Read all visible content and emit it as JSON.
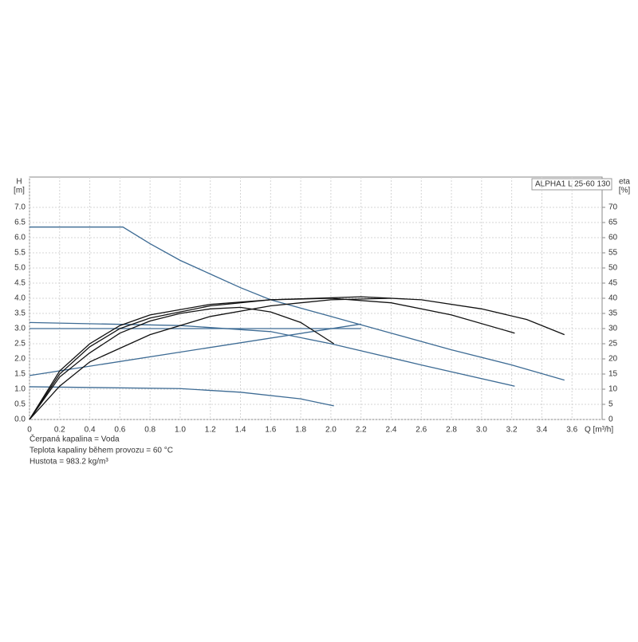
{
  "chart_data": {
    "type": "line",
    "legend_title": "ALPHA1 L 25-60  130",
    "ylabel": "H",
    "ylabel_unit": "[m]",
    "y2label": "eta",
    "y2label_unit": "[%]",
    "xlabel": "Q [m³/h]",
    "notes": [
      "Čerpaná kapalina = Voda",
      "Teplota kapaliny během provozu = 60 °C",
      "Hustota = 983.2 kg/m³"
    ],
    "grid": true,
    "xlim": [
      0,
      3.8
    ],
    "ylim": [
      0,
      8
    ],
    "y2lim": [
      0,
      80
    ],
    "xticks": [
      0,
      0.2,
      0.4,
      0.6,
      0.8,
      {
        "value": 1,
        "label": "1.0"
      },
      1.2,
      1.4,
      1.6,
      1.8,
      {
        "value": 2,
        "label": "2.0"
      },
      2.2,
      2.4,
      2.6,
      2.8,
      {
        "value": 3,
        "label": "3.0"
      },
      3.2,
      3.4,
      3.6
    ],
    "yticks": [
      {
        "value": 0,
        "label": "0.0"
      },
      0.5,
      {
        "value": 1,
        "label": "1.0"
      },
      1.5,
      {
        "value": 2,
        "label": "2.0"
      },
      2.5,
      {
        "value": 3,
        "label": "3.0"
      },
      3.5,
      {
        "value": 4,
        "label": "4.0"
      },
      4.5,
      {
        "value": 5,
        "label": "5.0"
      },
      5.5,
      {
        "value": 6,
        "label": "6.0"
      },
      6.5,
      {
        "value": 7,
        "label": "7.0"
      }
    ],
    "y2ticks": [
      0,
      5,
      10,
      15,
      20,
      25,
      30,
      35,
      40,
      45,
      50,
      55,
      60,
      65,
      70
    ],
    "series": [
      {
        "color": "#3d6b94",
        "x": [
          0,
          0.62,
          0.8,
          1.0,
          1.2,
          1.4,
          1.6,
          2.0,
          2.4,
          2.8,
          3.2,
          3.55
        ],
        "values": [
          6.35,
          6.35,
          5.8,
          5.25,
          4.8,
          4.35,
          3.95,
          3.4,
          2.85,
          2.3,
          1.8,
          1.3
        ]
      },
      {
        "color": "#3d6b94",
        "x": [
          0,
          1.0,
          1.6,
          2.0,
          2.6,
          3.22
        ],
        "values": [
          3.2,
          3.1,
          2.9,
          2.5,
          1.8,
          1.1
        ]
      },
      {
        "color": "#3d6b94",
        "x": [
          0,
          2.2
        ],
        "values": [
          3.0,
          3.0
        ]
      },
      {
        "color": "#3d6b94",
        "x": [
          0,
          2.2
        ],
        "values": [
          1.45,
          3.15
        ]
      },
      {
        "color": "#3d6b94",
        "x": [
          0,
          1.0,
          1.4,
          1.8,
          2.02
        ],
        "values": [
          1.08,
          1.02,
          0.9,
          0.68,
          0.45
        ]
      },
      {
        "color": "#111111",
        "axis": "y2",
        "x": [
          0,
          0.2,
          0.4,
          0.6,
          0.8,
          1.2,
          1.6,
          2.2,
          2.6,
          3.0,
          3.3,
          3.55
        ],
        "values": [
          0,
          16,
          25,
          31,
          34.5,
          38,
          39.5,
          40.5,
          39.5,
          36.5,
          33,
          28
        ]
      },
      {
        "color": "#111111",
        "axis": "y2",
        "x": [
          0,
          0.2,
          0.4,
          0.6,
          0.8,
          1.2,
          1.6,
          2.0,
          2.4,
          2.8,
          3.22
        ],
        "values": [
          0,
          15,
          24,
          30,
          33.5,
          37.5,
          39.5,
          40,
          38.5,
          34.5,
          28.5
        ]
      },
      {
        "color": "#111111",
        "axis": "y2",
        "x": [
          0,
          0.2,
          0.4,
          0.6,
          0.8,
          1.0,
          1.2,
          1.4,
          1.6,
          1.8,
          2.02
        ],
        "values": [
          0,
          14,
          22,
          28.5,
          32.5,
          35,
          36.5,
          37,
          35.5,
          32,
          25
        ]
      },
      {
        "color": "#111111",
        "axis": "y2",
        "x": [
          0,
          0.2,
          0.4,
          0.8,
          1.2,
          1.6,
          2.0,
          2.4
        ],
        "values": [
          0,
          11,
          19,
          28,
          34,
          37.5,
          39.5,
          40
        ]
      }
    ]
  }
}
